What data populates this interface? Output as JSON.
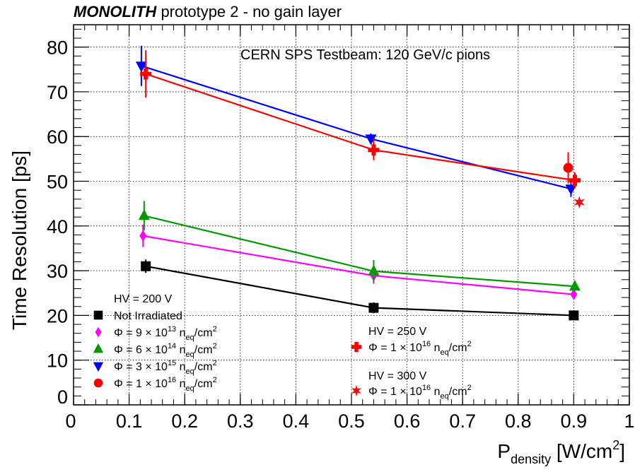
{
  "chart_data": {
    "type": "line",
    "title_bold": "MONOLITH",
    "title_rest": " prototype 2 - no gain layer",
    "annotation": "CERN SPS Testbeam: 120 GeV/c pions",
    "xlabel_main": "P",
    "xlabel_sub": "density",
    "xlabel_unit": " [W/cm",
    "xlabel_sup": "2",
    "xlabel_end": "]",
    "ylabel": "Time Resolution [ps]",
    "xlim": [
      0,
      1
    ],
    "ylim": [
      0,
      85
    ],
    "x_ticks": [
      "0",
      "0.1",
      "0.2",
      "0.3",
      "0.4",
      "0.5",
      "0.6",
      "0.7",
      "0.8",
      "0.9",
      "1"
    ],
    "y_ticks": [
      "0",
      "10",
      "20",
      "30",
      "40",
      "50",
      "60",
      "70",
      "80"
    ],
    "grid": true,
    "series": [
      {
        "key": "ni",
        "color": "#000000",
        "marker": "square",
        "x": [
          0.13,
          0.54,
          0.9
        ],
        "y": [
          31,
          21.7,
          20
        ],
        "err": [
          1.5,
          1.2,
          0.8
        ],
        "line": true
      },
      {
        "key": "f9e13",
        "color": "#ff00ff",
        "marker": "diamond",
        "x": [
          0.125,
          0.54,
          0.9
        ],
        "y": [
          37.8,
          28.9,
          24.7
        ],
        "err": [
          2.5,
          1.8,
          0.8
        ],
        "line": true
      },
      {
        "key": "f6e14",
        "color": "#009900",
        "marker": "triangle-up",
        "x": [
          0.127,
          0.54,
          0.902
        ],
        "y": [
          42.3,
          29.9,
          26.5
        ],
        "err": [
          3.3,
          2.5,
          1.0
        ],
        "line": true
      },
      {
        "key": "f3e15",
        "color": "#0000ff",
        "marker": "triangle-down",
        "x": [
          0.122,
          0.535,
          0.895
        ],
        "y": [
          75.8,
          59.5,
          48.3
        ],
        "err": [
          4.5,
          1.2,
          1.8
        ],
        "line": true
      },
      {
        "key": "f1e16_200",
        "color": "#ff0000",
        "marker": "circle",
        "x": [
          0.89
        ],
        "y": [
          53
        ],
        "err": [
          3.5
        ],
        "line": false
      },
      {
        "key": "f1e16_250",
        "color": "#ff0000",
        "marker": "cross",
        "x": [
          0.13,
          0.54,
          0.902
        ],
        "y": [
          74,
          57,
          50.2
        ],
        "err": [
          5.3,
          2.3,
          1.8
        ],
        "line": true
      },
      {
        "key": "f1e16_300",
        "color": "#ff0000",
        "marker": "star",
        "x": [
          0.91
        ],
        "y": [
          45.3
        ],
        "err": [
          0
        ],
        "line": false
      }
    ]
  },
  "legend": {
    "hv200": "HV = 200 V",
    "not_irradiated": "Not Irradiated",
    "phi": "Φ",
    "eq_prefix": " = ",
    "times_ten": " × 10",
    "n": " n",
    "eq_sub": "eq",
    "per_cm": "/cm",
    "sq": "2",
    "entries": [
      {
        "coef": "9",
        "exp": "13"
      },
      {
        "coef": "6",
        "exp": "14"
      },
      {
        "coef": "3",
        "exp": "15"
      },
      {
        "coef": "1",
        "exp": "16"
      }
    ],
    "hv250": "HV = 250 V",
    "hv250_entry": {
      "coef": "1",
      "exp": "16"
    },
    "hv300": "HV = 300 V",
    "hv300_entry": {
      "coef": "1",
      "exp": "16"
    }
  }
}
